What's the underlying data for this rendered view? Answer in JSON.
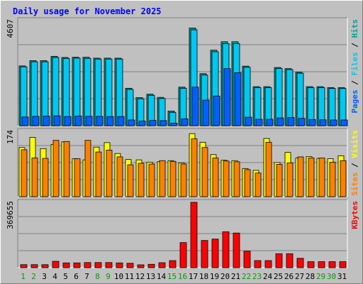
{
  "chart_data": {
    "type": "bar",
    "title": "Daily usage for November 2025",
    "categories": [
      "1",
      "2",
      "3",
      "4",
      "5",
      "6",
      "7",
      "8",
      "9",
      "10",
      "11",
      "12",
      "13",
      "14",
      "15",
      "16",
      "17",
      "18",
      "19",
      "20",
      "21",
      "22",
      "23",
      "24",
      "25",
      "26",
      "27",
      "28",
      "29",
      "30",
      "31"
    ],
    "weekend_days": [
      "1",
      "2",
      "8",
      "9",
      "15",
      "16",
      "22",
      "23",
      "29",
      "30"
    ],
    "panels": [
      {
        "id": "hits",
        "max_label": "4607",
        "ylim": [
          0,
          4607
        ],
        "legend": [
          "Pages",
          "Files",
          "Hits"
        ],
        "series": [
          {
            "name": "Hits",
            "color": "#00a0a0",
            "values": [
              2620,
              2850,
              2850,
              3040,
              2990,
              3000,
              3000,
              2960,
              2960,
              2960,
              1640,
              1230,
              1380,
              1240,
              640,
              1690,
              4280,
              2280,
              3310,
              3680,
              3680,
              2610,
              1710,
              1710,
              2550,
              2500,
              2340,
              1710,
              1710,
              1670,
              1670
            ]
          },
          {
            "name": "Files",
            "color": "#00c8f0",
            "values": [
              2580,
              2800,
              2800,
              2990,
              2950,
              2960,
              2950,
              2920,
              2920,
              2920,
              1590,
              1180,
              1330,
              1190,
              580,
              1640,
              4200,
              2220,
              3240,
              3600,
              3600,
              2560,
              1670,
              1670,
              2510,
              2460,
              2300,
              1670,
              1670,
              1630,
              1630
            ]
          },
          {
            "name": "Pages",
            "color": "#0060ff",
            "values": [
              380,
              410,
              420,
              430,
              400,
              420,
              410,
              410,
              400,
              400,
              250,
              200,
              230,
              220,
              110,
              300,
              1690,
              1120,
              1300,
              2500,
              2320,
              370,
              280,
              280,
              340,
              360,
              320,
              270,
              260,
              250,
              250
            ]
          }
        ]
      },
      {
        "id": "visits",
        "max_label": "174",
        "ylim": [
          0,
          174
        ],
        "legend": [
          "Sites",
          "Visits"
        ],
        "series": [
          {
            "name": "Visits",
            "color": "#ffff00",
            "values": [
              131,
              158,
              128,
              139,
              146,
              101,
              98,
              132,
              144,
              115,
              99,
              98,
              92,
              93,
              96,
              90,
              168,
              145,
              112,
              97,
              96,
              75,
              70,
              155,
              91,
              118,
              103,
              107,
              102,
              101,
              109
            ]
          },
          {
            "name": "Sites",
            "color": "#ff8000",
            "values": [
              125,
              103,
              102,
              150,
              147,
              101,
              150,
              119,
              124,
              106,
              85,
              89,
              87,
              96,
              94,
              87,
              154,
              131,
              103,
              95,
              93,
              72,
              63,
              145,
              86,
              90,
              106,
              103,
              103,
              92,
              96
            ]
          }
        ]
      },
      {
        "id": "kbytes",
        "max_label": "369655",
        "ylim": [
          0,
          369655
        ],
        "legend": [
          "KBytes"
        ],
        "series": [
          {
            "name": "KBytes",
            "color": "#ff0000",
            "values": [
              17000,
              17000,
              17000,
              36000,
              27000,
              27000,
              29000,
              29000,
              29000,
              27000,
              25000,
              16000,
              19000,
              28000,
              40000,
              142000,
              370000,
              154000,
              162000,
              203000,
              196000,
              93000,
              40000,
              40000,
              79000,
              79000,
              53000,
              34000,
              34000,
              34000,
              34000
            ]
          }
        ]
      }
    ]
  },
  "colors": {
    "background": "#c0c0c0",
    "title": "#0000ff",
    "axis_text": "#000000",
    "weekend_text": "#00a000",
    "hits": "#00a0a0",
    "files": "#00c8f0",
    "pages": "#0060ff",
    "visits": "#ffff00",
    "sites": "#ff8000",
    "kbytes": "#ff0000"
  }
}
